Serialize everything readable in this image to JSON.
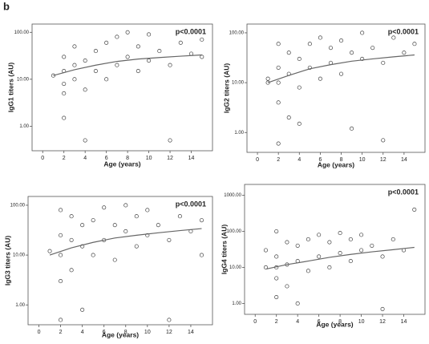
{
  "panel_label": "b",
  "chart_data": [
    {
      "type": "scatter",
      "annotation": "p<0.0001",
      "x_label": "Age (years)",
      "y_label": "IgG1 titers (AU)",
      "log_y": true,
      "xlim": [
        -1,
        16
      ],
      "ylim": [
        0.3,
        150
      ],
      "xticks": [
        0,
        2,
        4,
        6,
        8,
        10,
        12,
        14
      ],
      "yticks": [
        {
          "value": 1,
          "label": "1.00"
        },
        {
          "value": 10,
          "label": "10.00"
        },
        {
          "value": 100,
          "label": "100.00"
        }
      ],
      "series": [
        {
          "color": "#444444",
          "x": [
            1,
            2,
            2,
            2,
            2,
            2,
            3,
            3,
            3,
            4,
            4,
            4,
            5,
            5,
            6,
            6,
            7,
            7,
            8,
            8,
            9,
            9,
            10,
            10,
            11,
            12,
            12,
            13,
            14,
            15,
            15
          ],
          "values": [
            12,
            5,
            8,
            15,
            30,
            1.5,
            10,
            20,
            50,
            6,
            25,
            0.5,
            15,
            40,
            10,
            60,
            20,
            80,
            30,
            100,
            15,
            50,
            25,
            90,
            40,
            20,
            0.5,
            60,
            35,
            70,
            30
          ]
        }
      ],
      "fit_line": {
        "color": "#666666",
        "x": [
          1,
          3,
          5,
          7,
          9,
          11,
          13,
          15
        ],
        "values": [
          12,
          16,
          20,
          24,
          27,
          29,
          31,
          33
        ]
      }
    },
    {
      "type": "scatter",
      "annotation": "p<0.0001",
      "x_label": "Age (years)",
      "y_label": "IgG2 titers (AU)",
      "log_y": true,
      "xlim": [
        -1,
        16
      ],
      "ylim": [
        0.4,
        150
      ],
      "xticks": [
        0,
        2,
        4,
        6,
        8,
        10,
        12,
        14
      ],
      "yticks": [
        {
          "value": 1,
          "label": "1.00"
        },
        {
          "value": 10,
          "label": "10.00"
        },
        {
          "value": 100,
          "label": "100.00"
        }
      ],
      "series": [
        {
          "color": "#444444",
          "x": [
            1,
            1,
            2,
            2,
            2,
            2,
            2,
            3,
            3,
            3,
            4,
            4,
            4,
            5,
            5,
            6,
            6,
            7,
            7,
            8,
            8,
            9,
            9,
            10,
            10,
            11,
            12,
            12,
            13,
            14,
            15
          ],
          "values": [
            10,
            12,
            0.6,
            4,
            10,
            20,
            60,
            2,
            15,
            40,
            8,
            30,
            1.5,
            20,
            60,
            12,
            80,
            25,
            50,
            15,
            70,
            1.2,
            40,
            30,
            100,
            50,
            0.7,
            25,
            80,
            40,
            60
          ]
        }
      ],
      "fit_line": {
        "color": "#666666",
        "x": [
          1,
          3,
          5,
          7,
          9,
          11,
          13,
          15
        ],
        "values": [
          10,
          14,
          19,
          23,
          27,
          30,
          33,
          36
        ]
      }
    },
    {
      "type": "scatter",
      "annotation": "p<0.0001",
      "x_label": "Age (years)",
      "y_label": "IgG3 titers (AU)",
      "log_y": true,
      "xlim": [
        -1,
        16
      ],
      "ylim": [
        0.4,
        150
      ],
      "xticks": [
        0,
        2,
        4,
        6,
        8,
        10,
        12,
        14
      ],
      "yticks": [
        {
          "value": 1,
          "label": "1.00"
        },
        {
          "value": 10,
          "label": "10.00"
        },
        {
          "value": 100,
          "label": "100.00"
        }
      ],
      "series": [
        {
          "color": "#444444",
          "x": [
            1,
            2,
            2,
            2,
            2,
            2,
            3,
            3,
            3,
            4,
            4,
            4,
            5,
            5,
            6,
            6,
            7,
            7,
            8,
            8,
            9,
            9,
            10,
            10,
            11,
            12,
            12,
            13,
            14,
            15,
            15
          ],
          "values": [
            12,
            0.5,
            3,
            10,
            25,
            80,
            5,
            20,
            60,
            0.8,
            15,
            40,
            10,
            50,
            20,
            90,
            8,
            40,
            30,
            100,
            15,
            60,
            25,
            80,
            40,
            0.5,
            20,
            60,
            30,
            50,
            10
          ]
        }
      ],
      "fit_line": {
        "color": "#666666",
        "x": [
          1,
          3,
          5,
          7,
          9,
          11,
          13,
          15
        ],
        "values": [
          10,
          14,
          18,
          22,
          25,
          28,
          31,
          34
        ]
      }
    },
    {
      "type": "scatter",
      "annotation": "p<0.0001",
      "x_label": "Age (years)",
      "y_label": "IgG4 titers (AU)",
      "log_y": true,
      "xlim": [
        -1,
        16
      ],
      "ylim": [
        0.5,
        2000
      ],
      "xticks": [
        0,
        2,
        4,
        6,
        8,
        10,
        12,
        14
      ],
      "yticks": [
        {
          "value": 1,
          "label": "1.00"
        },
        {
          "value": 10,
          "label": "10.00"
        },
        {
          "value": 100,
          "label": "100.00"
        },
        {
          "value": 1000,
          "label": "1000.00"
        }
      ],
      "series": [
        {
          "color": "#444444",
          "x": [
            1,
            1,
            2,
            2,
            2,
            2,
            2,
            3,
            3,
            3,
            4,
            4,
            4,
            5,
            5,
            6,
            6,
            7,
            7,
            8,
            8,
            9,
            9,
            10,
            10,
            11,
            12,
            12,
            13,
            14,
            15
          ],
          "values": [
            10,
            30,
            1.5,
            5,
            10,
            20,
            100,
            3,
            12,
            50,
            1,
            15,
            40,
            8,
            60,
            20,
            80,
            10,
            50,
            25,
            90,
            15,
            60,
            30,
            80,
            40,
            0.7,
            20,
            60,
            30,
            400
          ]
        }
      ],
      "fit_line": {
        "color": "#666666",
        "x": [
          1,
          3,
          5,
          7,
          9,
          11,
          13,
          15
        ],
        "values": [
          9,
          12,
          15,
          19,
          23,
          27,
          31,
          36
        ]
      }
    }
  ]
}
